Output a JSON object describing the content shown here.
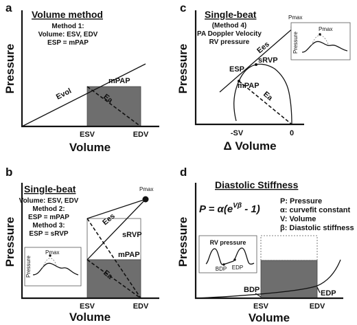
{
  "panels": {
    "a": {
      "letter": "a",
      "title": "Volume method",
      "notes": [
        "Method 1:",
        "Volume: ESV, EDV",
        "ESP = mPAP"
      ],
      "ylabel": "Pressure",
      "xlabel": "Volume",
      "ticks": [
        "ESV",
        "EDV"
      ],
      "labels": {
        "evol": "Evol",
        "ea": "Ea",
        "mpap": "mPAP"
      }
    },
    "b": {
      "letter": "b",
      "title": "Single-beat",
      "notes": [
        "Volume: ESV, EDV",
        "Method 2:",
        "ESP = mPAP",
        "Method 3:",
        "ESP = sRVP"
      ],
      "ylabel": "Pressure",
      "xlabel": "Volume",
      "ticks": [
        "ESV",
        "EDV"
      ],
      "labels": {
        "pmax": "Pmax",
        "ees": "Ees",
        "srvp": "sRVP",
        "mpap": "mPAP",
        "ea": "Ea"
      },
      "inset": {
        "ylabel": "Pressure",
        "pmax": "Pmax"
      }
    },
    "c": {
      "letter": "c",
      "title": "Single-beat",
      "notes": [
        "(Method 4)",
        "PA Doppler Velocity",
        "RV pressure"
      ],
      "ylabel": "Pressure",
      "xlabel": "Δ Volume",
      "ticks": [
        "-SV",
        "0"
      ],
      "labels": {
        "pmax": "Pmax",
        "ees": "Ees",
        "esp": "ESP",
        "srvp": "sRVP",
        "mpap": "mPAP",
        "ea": "Ea"
      },
      "inset": {
        "ylabel": "Pressure",
        "pmax": "Pmax"
      }
    },
    "d": {
      "letter": "d",
      "title": "Diastolic Stiffness",
      "formula": {
        "base": "P = α(e",
        "sup": "Vβ",
        "rest": " - 1)"
      },
      "legend": [
        "P: Pressure",
        "α: curvefit constant",
        "V: Volume",
        "β: Diastolic stiffness"
      ],
      "ylabel": "Pressure",
      "xlabel": "Volume",
      "ticks": [
        "ESV",
        "EDV"
      ],
      "labels": {
        "bdp": "BDP",
        "edp": "EDP"
      },
      "inset": {
        "title": "RV pressure",
        "bdp": "BDP",
        "edp": "EDP"
      }
    }
  }
}
